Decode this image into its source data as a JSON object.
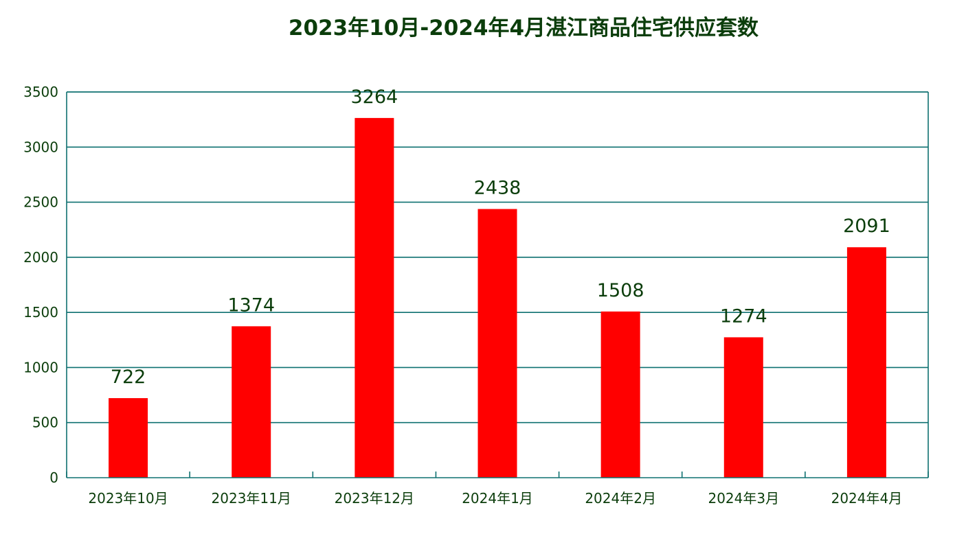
{
  "colors": {
    "bar": "#ff0000",
    "grid": "#0e7070",
    "text": "#0b3d0b",
    "background": "#ffffff"
  },
  "chart_data": {
    "type": "bar",
    "title": "2023年10月-2024年4月湛江商品住宅供应套数",
    "categories": [
      "2023年10月",
      "2023年11月",
      "2023年12月",
      "2024年1月",
      "2024年2月",
      "2024年3月",
      "2024年4月"
    ],
    "values": [
      722,
      1374,
      3264,
      2438,
      1508,
      1274,
      2091
    ],
    "ylim": [
      0,
      3500
    ],
    "yticks": [
      0,
      500,
      1000,
      1500,
      2000,
      2500,
      3000,
      3500
    ],
    "grid": true,
    "legend": "none",
    "data_labels": true
  }
}
